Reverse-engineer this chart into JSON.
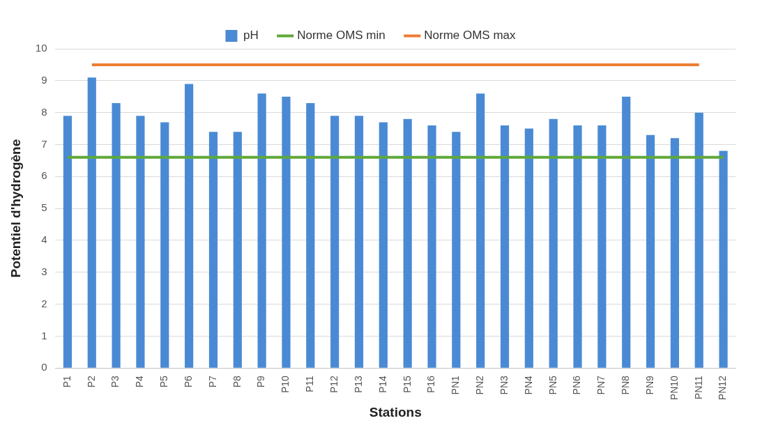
{
  "chart_data": {
    "type": "bar",
    "xlabel": "Stations",
    "ylabel": "Potentiel d'hydrogène",
    "categories": [
      "P1",
      "P2",
      "P3",
      "P4",
      "P5",
      "P6",
      "P7",
      "P8",
      "P9",
      "P10",
      "P11",
      "P12",
      "P13",
      "P14",
      "P15",
      "P16",
      "PN1",
      "PN2",
      "PN3",
      "PN4",
      "PN5",
      "PN6",
      "PN7",
      "PN8",
      "PN9",
      "PN10",
      "PN11",
      "PN12"
    ],
    "series": [
      {
        "name": "pH",
        "color": "#4a8ad4",
        "values": [
          7.9,
          9.1,
          8.3,
          7.9,
          7.7,
          8.9,
          7.4,
          7.4,
          8.6,
          8.5,
          8.3,
          7.9,
          7.9,
          7.7,
          7.8,
          7.6,
          7.4,
          8.6,
          7.6,
          7.5,
          7.8,
          7.6,
          7.6,
          8.5,
          7.3,
          7.2,
          8.0,
          6.8
        ]
      },
      {
        "name": "Norme OMS min",
        "type": "line",
        "color": "#5fa83a",
        "values": [
          6.6,
          6.6,
          6.6,
          6.6,
          6.6,
          6.6,
          6.6,
          6.6,
          6.6,
          6.6,
          6.6,
          6.6,
          6.6,
          6.6,
          6.6,
          6.6,
          6.6,
          6.6,
          6.6,
          6.6,
          6.6,
          6.6,
          6.6,
          6.6,
          6.6,
          6.6,
          6.6,
          6.6
        ]
      },
      {
        "name": "Norme OMS max",
        "type": "line",
        "color": "#ed7d31",
        "values": [
          null,
          9.5,
          9.5,
          9.5,
          9.5,
          9.5,
          9.5,
          9.5,
          9.5,
          9.5,
          9.5,
          9.5,
          9.5,
          9.5,
          9.5,
          9.5,
          9.5,
          9.5,
          9.5,
          9.5,
          9.5,
          9.5,
          9.5,
          9.5,
          9.5,
          9.5,
          9.5,
          null
        ]
      }
    ],
    "ylim": [
      0,
      10
    ],
    "yticks": [
      0,
      1,
      2,
      3,
      4,
      5,
      6,
      7,
      8,
      9,
      10
    ],
    "grid": "y",
    "legend": "top"
  }
}
